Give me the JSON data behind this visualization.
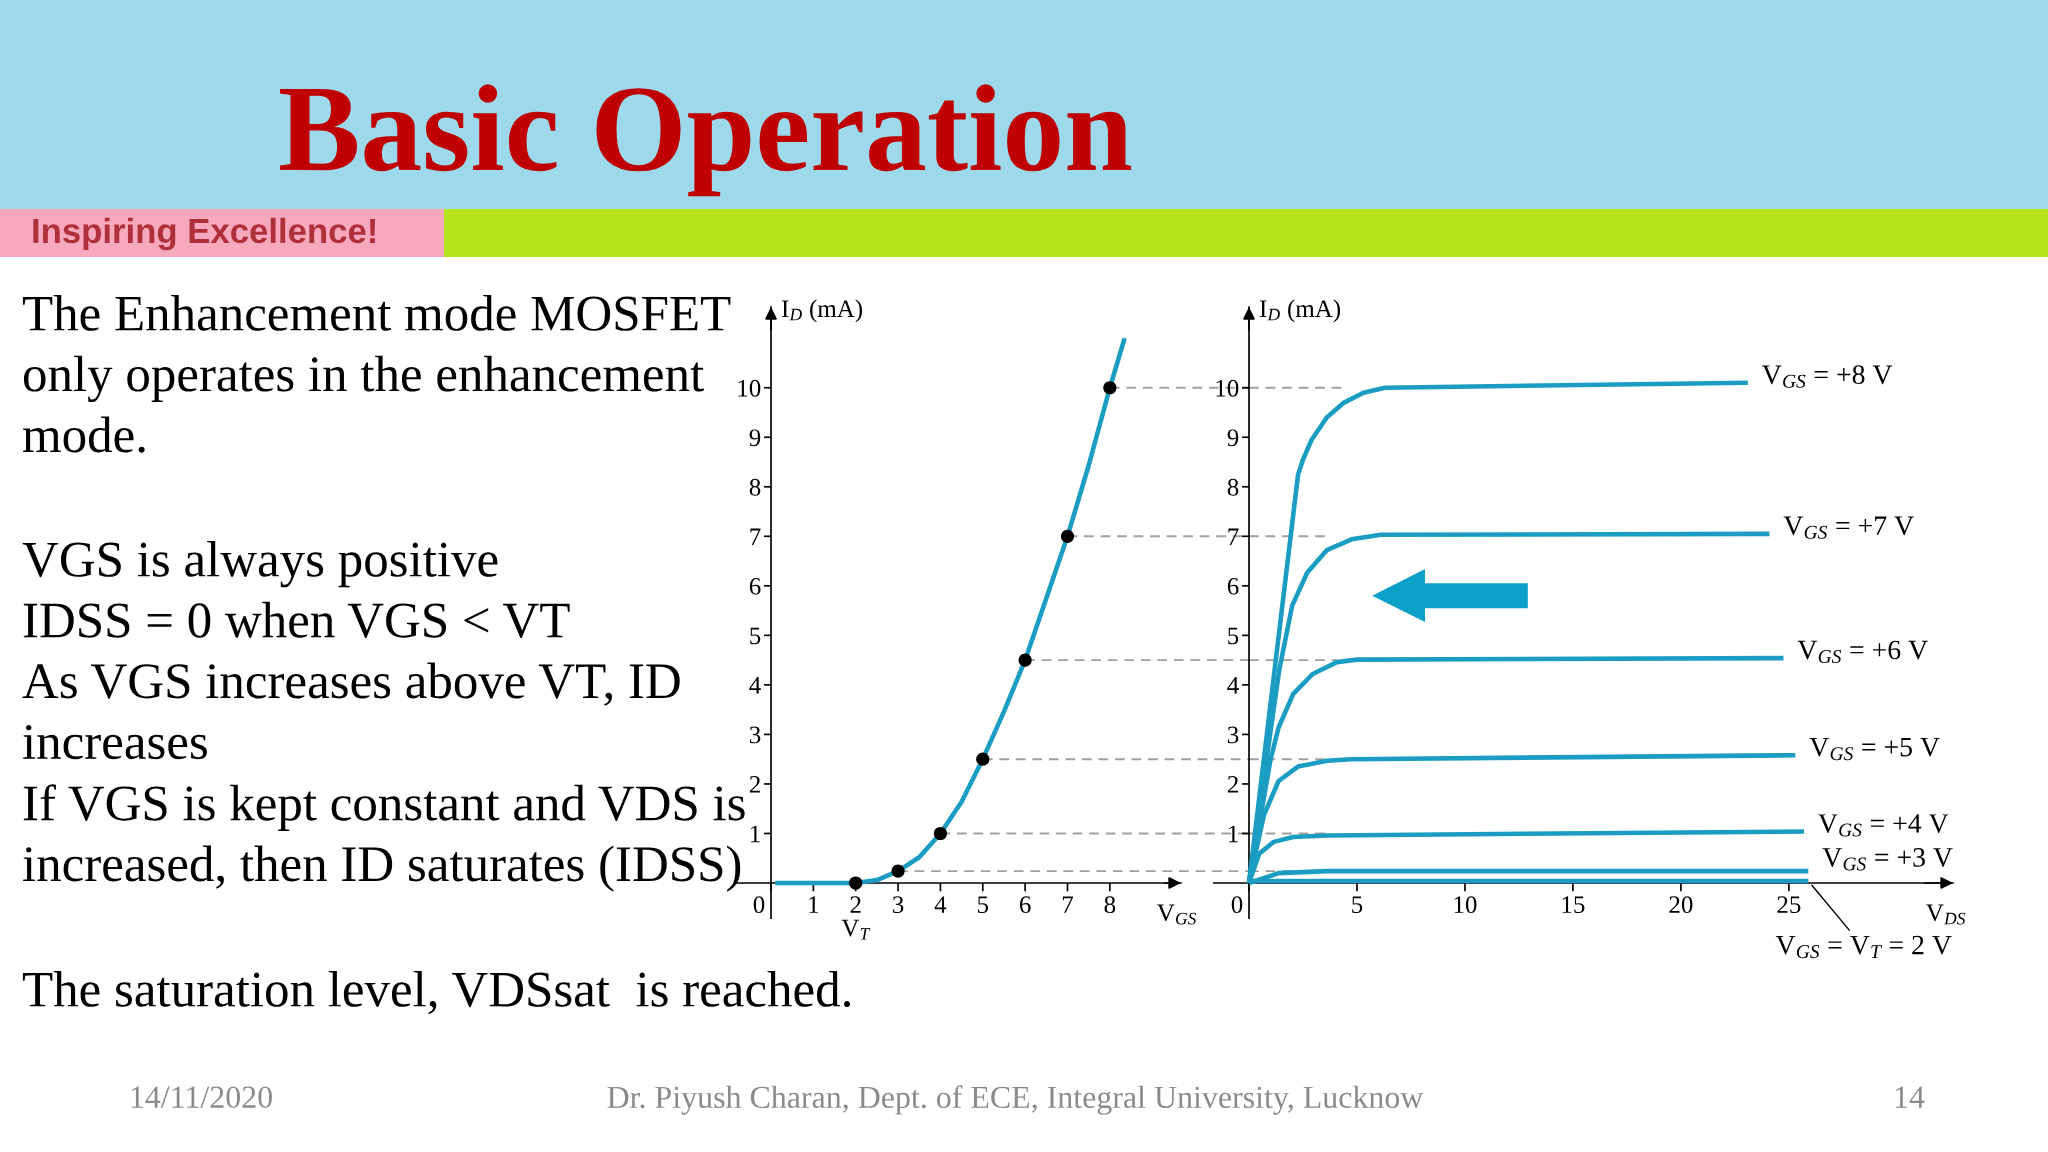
{
  "chart_data": [
    {
      "type": "other",
      "title": "Basic Operation",
      "annotations": [
        "Inspiring Excellence!",
        "The Enhancement mode MOSFET\nonly operates in the enhancement\nmode.",
        "VGS is always positive\nIDSS = 0 when VGS < VT\nAs VGS increases above VT, ID\nincreases\nIf VGS is kept constant and VDS is\nincreased, then ID saturates (IDSS)",
        "The saturation level, VDSsat  is reached.",
        "14/11/2020",
        "Dr. Piyush Charan, Dept. of ECE, Integral University, Lucknow",
        "14"
      ]
    },
    {
      "type": "line",
      "xlabel": "V$_{GS}$",
      "ylabel": "I$_{D}$ (mA)",
      "xlim": [
        0,
        9.68
      ],
      "ylim": [
        0,
        11.63
      ],
      "xticks": [
        0,
        1,
        2,
        3,
        4,
        5,
        6,
        7,
        8
      ],
      "yticks": [
        1,
        2,
        3,
        4,
        5,
        6,
        7,
        8,
        9,
        10
      ],
      "series": [
        {
          "color": "#1b9dc3",
          "x": [
            0.1,
            1,
            2,
            2.5,
            3,
            3.5,
            4,
            4.5,
            5,
            5.5,
            6,
            6.5,
            7,
            7.5,
            8,
            8.35
          ],
          "values": [
            0,
            0,
            0,
            0.06,
            0.24,
            0.52,
            1,
            1.64,
            2.5,
            3.46,
            4.5,
            5.75,
            7,
            8.43,
            10,
            11
          ]
        },
        {
          "type": "scatter",
          "marker": "circle",
          "color": "#000000",
          "x": [
            2,
            3,
            4,
            5,
            6,
            7,
            8
          ],
          "values": [
            0,
            0.24,
            1,
            2.5,
            4.5,
            7,
            10
          ]
        }
      ],
      "ref_lines": [
        {
          "axis": "y",
          "value": 10,
          "color": "#a0a0a0",
          "line_style": "dashed"
        },
        {
          "axis": "y",
          "value": 7,
          "color": "#a0a0a0",
          "line_style": "dashed"
        },
        {
          "axis": "y",
          "value": 4.5,
          "color": "#a0a0a0",
          "line_style": "dashed"
        },
        {
          "axis": "y",
          "value": 2.5,
          "color": "#a0a0a0",
          "line_style": "dashed"
        },
        {
          "axis": "y",
          "value": 1,
          "color": "#a0a0a0",
          "line_style": "dashed"
        },
        {
          "axis": "y",
          "value": 0.24,
          "color": "#a0a0a0",
          "line_style": "dashed"
        }
      ],
      "annotations": [
        {
          "text": "V$_{T}$",
          "x": 2,
          "y": 0
        }
      ]
    },
    {
      "type": "line",
      "xlabel": "V$_{DS}$",
      "ylabel": "I$_{D}$ (mA)",
      "xlim": [
        0,
        32.6
      ],
      "ylim": [
        0,
        11.63
      ],
      "xticks": [
        0,
        5,
        10,
        15,
        20,
        25
      ],
      "yticks": [
        1,
        2,
        3,
        4,
        5,
        6,
        7,
        8,
        9,
        10
      ],
      "series": [
        {
          "name": "V$_{GS}$ = +8 V",
          "color": "#1b9dc3",
          "x": [
            0,
            2.27,
            2.5,
            2.9,
            3.6,
            4.4,
            5.3,
            6.3,
            23.1
          ],
          "values": [
            0,
            8.24,
            8.55,
            8.95,
            9.4,
            9.7,
            9.9,
            10,
            10.1
          ]
        },
        {
          "name": "V$_{GS}$ = +7 V",
          "color": "#1b9dc3",
          "x": [
            0,
            1.4,
            2.0,
            2.7,
            3.6,
            4.75,
            6.1,
            24.1
          ],
          "values": [
            0,
            4.3,
            5.6,
            6.27,
            6.72,
            6.94,
            7.03,
            7.05
          ]
        },
        {
          "name": "V$_{GS}$ = +6 V",
          "color": "#1b9dc3",
          "x": [
            0,
            1.0,
            1.37,
            2.05,
            2.95,
            4.07,
            5.0,
            24.75
          ],
          "values": [
            0,
            2.5,
            3.14,
            3.82,
            4.22,
            4.46,
            4.51,
            4.54
          ]
        },
        {
          "name": "V$_{GS}$ = +5 V",
          "color": "#1b9dc3",
          "x": [
            0,
            0.69,
            1.37,
            2.27,
            3.62,
            4.75,
            25.3
          ],
          "values": [
            0,
            1.37,
            2.06,
            2.35,
            2.47,
            2.5,
            2.58
          ]
        },
        {
          "name": "V$_{GS}$ = +4 V",
          "color": "#1b9dc3",
          "x": [
            0,
            0.47,
            1.14,
            2.05,
            3.62,
            25.7
          ],
          "values": [
            0,
            0.59,
            0.83,
            0.93,
            0.96,
            1.04
          ]
        },
        {
          "name": "V$_{GS}$ = +3 V",
          "color": "#1b9dc3",
          "x": [
            0,
            1.37,
            3.62,
            25.9
          ],
          "values": [
            0,
            0.2,
            0.24,
            0.24
          ]
        },
        {
          "name": "V$_{GS}$ = V$_{T}$ = 2 V",
          "color": "#1b9dc3",
          "x": [
            0,
            25.9
          ],
          "values": [
            0.04,
            0.04
          ]
        }
      ],
      "ref_lines": [
        {
          "axis": "y",
          "value": 10,
          "color": "#a0a0a0",
          "line_style": "dashed"
        },
        {
          "axis": "y",
          "value": 7,
          "color": "#a0a0a0",
          "line_style": "dashed"
        },
        {
          "axis": "y",
          "value": 4.5,
          "color": "#a0a0a0",
          "line_style": "dashed"
        },
        {
          "axis": "y",
          "value": 2.5,
          "color": "#a0a0a0",
          "line_style": "dashed"
        },
        {
          "axis": "y",
          "value": 1,
          "color": "#a0a0a0",
          "line_style": "dashed"
        },
        {
          "axis": "y",
          "value": 0.24,
          "color": "#a0a0a0",
          "line_style": "dashed"
        }
      ]
    }
  ]
}
